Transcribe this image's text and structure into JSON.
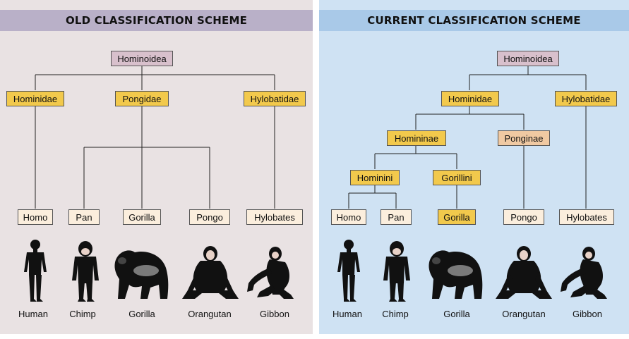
{
  "left": {
    "title": "OLD CLASSIFICATION SCHEME",
    "nodes": {
      "superfamily": "Hominoidea",
      "hominidae": "Hominidae",
      "pongidae": "Pongidae",
      "hylobatidae": "Hylobatidae",
      "homo": "Homo",
      "pan": "Pan",
      "gorilla": "Gorilla",
      "pongo": "Pongo",
      "hylobates": "Hylobates"
    },
    "animals": [
      "Human",
      "Chimp",
      "Gorilla",
      "Orangutan",
      "Gibbon"
    ]
  },
  "right": {
    "title": "CURRENT CLASSIFICATION SCHEME",
    "nodes": {
      "superfamily": "Hominoidea",
      "hominidae": "Hominidae",
      "hylobatidae": "Hylobatidae",
      "homininae": "Homininae",
      "ponginae": "Ponginae",
      "hominini": "Hominini",
      "gorillini": "Gorillini",
      "homo": "Homo",
      "pan": "Pan",
      "gorilla": "Gorilla",
      "pongo": "Pongo",
      "hylobates": "Hylobates"
    },
    "animals": [
      "Human",
      "Chimp",
      "Gorilla",
      "Orangutan",
      "Gibbon"
    ]
  },
  "colors": {
    "superfamily": "#d8c0cc",
    "family": "#f2c94c",
    "ponginae": "#f0c9a2",
    "genus": "#fbeedd",
    "left_bg": "#e9e2e3",
    "right_bg": "#cfe2f3"
  }
}
